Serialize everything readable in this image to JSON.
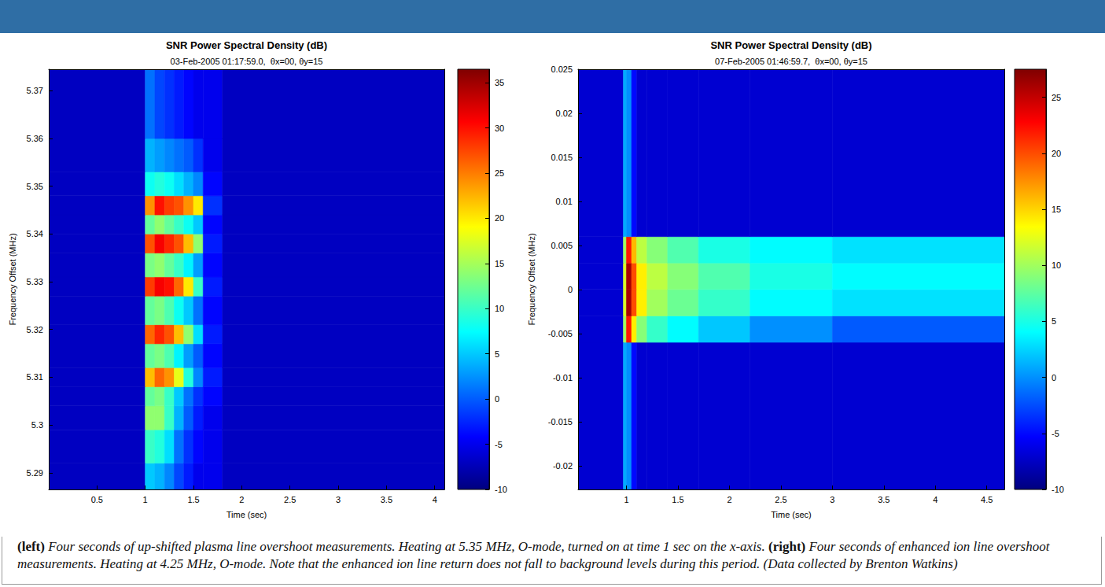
{
  "chart_data": [
    {
      "type": "heatmap",
      "title": "SNR Power Spectral Density (dB)",
      "subtitle": "03-Feb-2005 01:17:59.0,  θx=00, θy=15",
      "xlabel": "Time (sec)",
      "ylabel": "Frequency Offset (MHz)",
      "xlim": [
        0,
        4.1
      ],
      "xticks": [
        0.5,
        1,
        1.5,
        2,
        2.5,
        3,
        3.5,
        4
      ],
      "ylim": [
        5.2865,
        5.3745
      ],
      "yticks": [
        5.29,
        5.3,
        5.31,
        5.32,
        5.33,
        5.34,
        5.35,
        5.36,
        5.37
      ],
      "grid": false,
      "x_edges": [
        0,
        1.0,
        1.1,
        1.2,
        1.3,
        1.4,
        1.5,
        1.6,
        1.8,
        4.1
      ],
      "y_edges": [
        5.285,
        5.292,
        5.299,
        5.304,
        5.308,
        5.312,
        5.317,
        5.321,
        5.327,
        5.331,
        5.336,
        5.34,
        5.344,
        5.348,
        5.353,
        5.36,
        5.375
      ],
      "cells": [
        [
          -7,
          5,
          4,
          2,
          -1,
          -3,
          -5,
          -5,
          -7
        ],
        [
          -7,
          10,
          9,
          6,
          1,
          -2,
          -4,
          -5,
          -7
        ],
        [
          -7,
          14,
          14,
          10,
          4,
          0,
          -3,
          -5,
          -7
        ],
        [
          -7,
          12,
          13,
          10,
          5,
          1,
          -2,
          -4,
          -7
        ],
        [
          -7,
          22,
          26,
          24,
          18,
          9,
          2,
          -3,
          -7
        ],
        [
          -7,
          12,
          13,
          11,
          7,
          3,
          0,
          -4,
          -7
        ],
        [
          -7,
          26,
          29,
          27,
          22,
          14,
          6,
          -3,
          -7
        ],
        [
          -7,
          12,
          13,
          11,
          8,
          5,
          1,
          -4,
          -7
        ],
        [
          -7,
          28,
          31,
          30,
          26,
          20,
          10,
          -3,
          -7
        ],
        [
          -7,
          13,
          14,
          12,
          10,
          7,
          3,
          -4,
          -7
        ],
        [
          -7,
          27,
          31,
          29,
          27,
          22,
          14,
          -3,
          -7
        ],
        [
          -7,
          12,
          14,
          12,
          10,
          8,
          5,
          -4,
          -7
        ],
        [
          -7,
          24,
          30,
          28,
          27,
          24,
          20,
          -2,
          -7
        ],
        [
          -7,
          8,
          9,
          8,
          6,
          4,
          2,
          -4,
          -7
        ],
        [
          -7,
          4,
          3,
          2,
          1,
          0,
          -2,
          -5,
          -7
        ],
        [
          -7,
          1,
          -1,
          -2,
          -3,
          -4,
          -5,
          -5,
          -7
        ]
      ],
      "colorbar": {
        "range": [
          -10,
          36.5
        ],
        "ticks": [
          -10,
          -5,
          0,
          5,
          10,
          15,
          20,
          25,
          30,
          35
        ]
      }
    },
    {
      "type": "heatmap",
      "title": "SNR Power Spectral Density (dB)",
      "subtitle": "07-Feb-2005 01:46:59.7,  θx=00, θy=15",
      "xlabel": "Time (sec)",
      "ylabel": "Frequency Offset (MHz)",
      "xlim": [
        0.53,
        4.67
      ],
      "xticks": [
        1,
        1.5,
        2,
        2.5,
        3,
        3.5,
        4,
        4.5
      ],
      "ylim": [
        -0.0227,
        0.025
      ],
      "yticks": [
        -0.02,
        -0.015,
        -0.01,
        -0.005,
        0,
        0.005,
        0.01,
        0.015,
        0.02,
        0.025
      ],
      "grid": false,
      "x_edges": [
        0.53,
        0.97,
        1.0,
        1.05,
        1.1,
        1.2,
        1.4,
        1.7,
        2.2,
        3.0,
        4.67
      ],
      "y_edges": [
        -0.025,
        -0.006,
        -0.003,
        0,
        0.003,
        0.006,
        0.025
      ],
      "cells": [
        [
          -7,
          1,
          0,
          -5,
          -7,
          -7,
          -7,
          -7,
          -7,
          -7
        ],
        [
          -7,
          10,
          22,
          14,
          9,
          6,
          4,
          2,
          0,
          -2
        ],
        [
          -7,
          12,
          26,
          20,
          14,
          10,
          8,
          6,
          4,
          3
        ],
        [
          -7,
          12,
          26,
          20,
          14,
          11,
          9,
          7,
          5,
          4
        ],
        [
          -7,
          10,
          22,
          16,
          11,
          9,
          7,
          5,
          4,
          3
        ],
        [
          -7,
          1,
          0,
          -5,
          -7,
          -7,
          -7,
          -7,
          -7,
          -7
        ]
      ],
      "colorbar": {
        "range": [
          -10,
          27.5
        ],
        "ticks": [
          -10,
          -5,
          0,
          5,
          10,
          15,
          20,
          25
        ]
      }
    }
  ],
  "caption": [
    {
      "label": "(left)",
      "text": "Four seconds of up-shifted plasma line overshoot measurements. Heating at 5.35 MHz, O-mode, turned on at time 1 sec on the x-axis."
    },
    {
      "label": "(right)",
      "text": "Four seconds of enhanced ion line overshoot measurements. Heating at 4.25 MHz, O-mode. Note that the enhanced ion line return does not fall to background levels during this period. (Data collected by Brenton Watkins)"
    }
  ]
}
